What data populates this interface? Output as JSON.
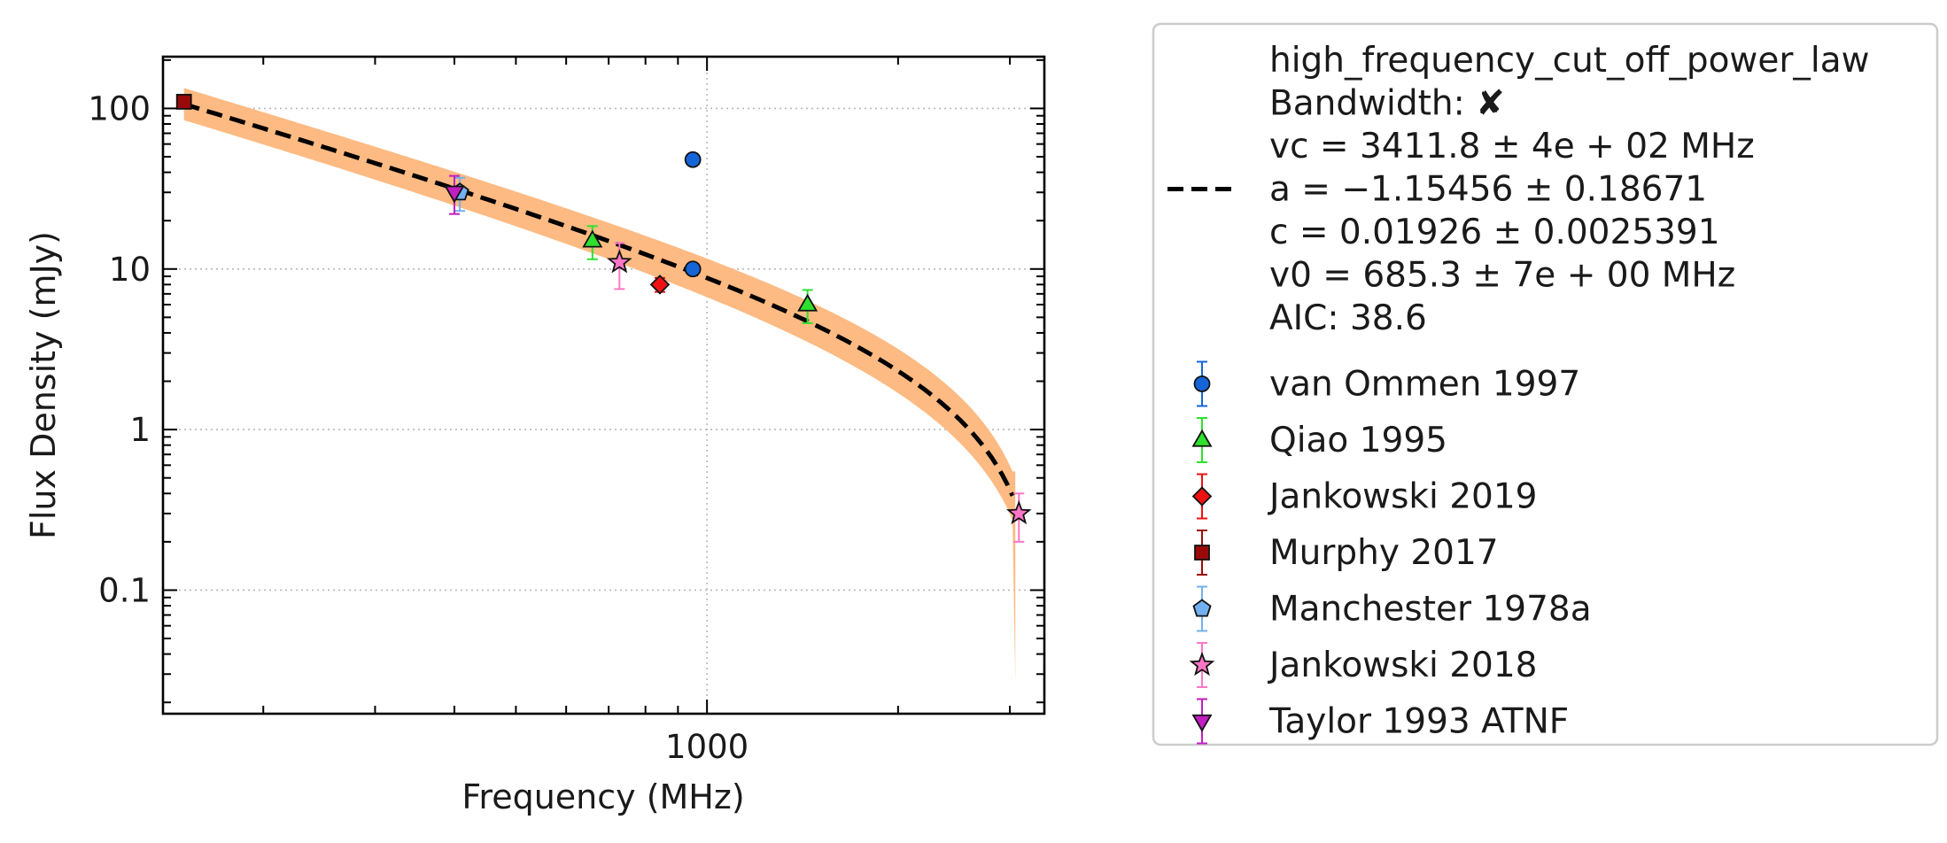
{
  "chart_data": {
    "type": "scatter",
    "xlabel": "Frequency (MHz)",
    "ylabel": "Flux Density (mJy)",
    "xscale": "log",
    "yscale": "log",
    "xlim": [
      139,
      3400
    ],
    "ylim": [
      0.017,
      210
    ],
    "xticks": [
      {
        "value": 1000,
        "label": "1000"
      }
    ],
    "yticks": [
      {
        "value": 0.1,
        "label": "0.1"
      },
      {
        "value": 1,
        "label": "1"
      },
      {
        "value": 10,
        "label": "10"
      },
      {
        "value": 100,
        "label": "100"
      }
    ],
    "grid": true,
    "legend_position": "outside-right",
    "fit": {
      "model": "high_frequency_cut_off_power_law",
      "legend_lines": [
        "high_frequency_cut_off_power_law",
        "Bandwidth: ✘",
        "vc = 3411.8 ± 4e + 02 MHz",
        "a = −1.15456 ± 0.18671",
        "c = 0.01926 ± 0.0025391",
        "v0 = 685.3 ± 7e + 00 MHz",
        "AIC: 38.6"
      ],
      "vc": 3411.8,
      "a": -1.15456,
      "c": 0.01926,
      "v0": 685.3,
      "line_color": "#000000",
      "band_color": "#fdba82"
    },
    "series": [
      {
        "name": "van Ommen 1997",
        "marker": "circle",
        "color": "#1565d8",
        "ecolor": "#1565d8",
        "points": [
          {
            "x": 950,
            "y": 48,
            "yerr": 0
          },
          {
            "x": 950,
            "y": 10,
            "yerr": 0.6
          }
        ]
      },
      {
        "name": "Qiao 1995",
        "marker": "triangle-up",
        "color": "#2ee02e",
        "ecolor": "#2ee02e",
        "points": [
          {
            "x": 660,
            "y": 15,
            "yerr": 3.5
          },
          {
            "x": 1440,
            "y": 6,
            "yerr": 1.4
          }
        ]
      },
      {
        "name": "Jankowski 2019",
        "marker": "diamond",
        "color": "#ee1111",
        "ecolor": "#ee1111",
        "points": [
          {
            "x": 843,
            "y": 8,
            "yerr": 0.8
          }
        ]
      },
      {
        "name": "Murphy 2017",
        "marker": "square",
        "color": "#9b0a0a",
        "ecolor": "#9b0a0a",
        "points": [
          {
            "x": 150,
            "y": 110,
            "yerr": 8
          }
        ]
      },
      {
        "name": "Manchester 1978a",
        "marker": "pentagon",
        "color": "#73b0ef",
        "ecolor": "#73b0ef",
        "points": [
          {
            "x": 408,
            "y": 30,
            "yerr": 7
          }
        ]
      },
      {
        "name": "Jankowski 2018",
        "marker": "star",
        "color": "#ff77c6",
        "ecolor": "#ff77c6",
        "points": [
          {
            "x": 728,
            "y": 11,
            "yerr": 3.5
          },
          {
            "x": 3100,
            "y": 0.3,
            "yerr": 0.1
          }
        ]
      },
      {
        "name": "Taylor 1993 ATNF",
        "marker": "triangle-down",
        "color": "#c11ec1",
        "ecolor": "#c11ec1",
        "points": [
          {
            "x": 400,
            "y": 30,
            "yerr": 8
          }
        ]
      }
    ]
  }
}
